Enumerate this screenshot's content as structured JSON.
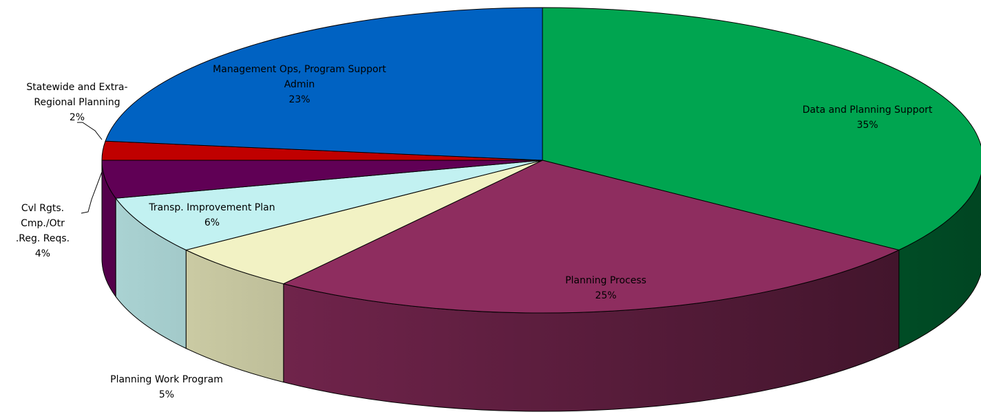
{
  "chart_data": {
    "type": "pie3d",
    "categories": [
      "Data and Planning Support",
      "Planning Process",
      "Planning Work Program",
      "Transp. Improvement Plan",
      "Cvl Rgts. Cmp./Otr .Reg. Reqs.",
      "Statewide and Extra-Regional Planning",
      "Management Ops, Program Support Admin"
    ],
    "values": [
      35,
      25,
      5,
      6,
      4,
      2,
      23
    ],
    "value_labels": [
      "35%",
      "25%",
      "5%",
      "6%",
      "4%",
      "2%",
      "23%"
    ],
    "colors": [
      "#00a550",
      "#8e2d5f",
      "#f2f2c4",
      "#c2f1f1",
      "#600055",
      "#c00000",
      "#0062c2"
    ]
  }
}
